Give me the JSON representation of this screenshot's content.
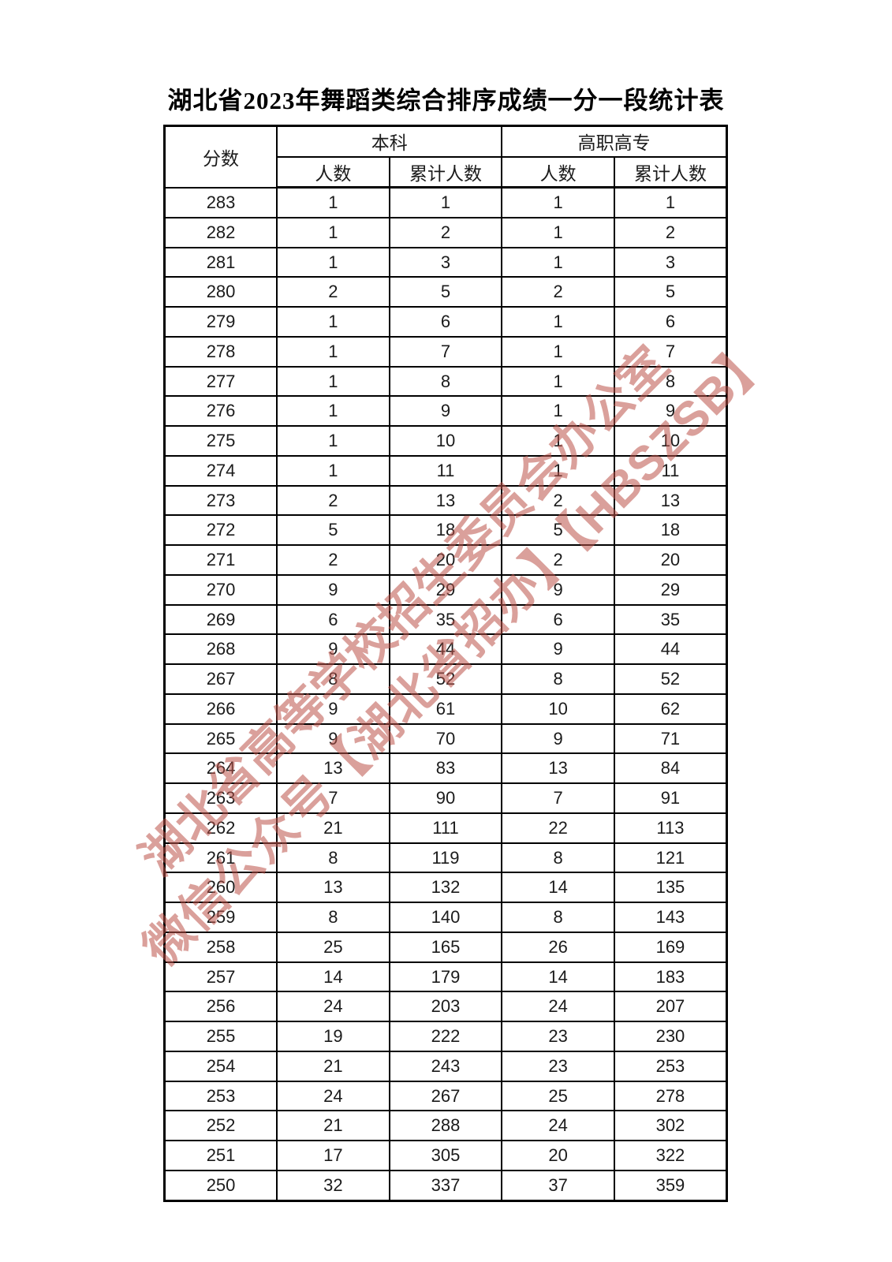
{
  "page_title": "湖北省2023年舞蹈类综合排序成绩一分一段统计表",
  "table": {
    "header": {
      "score": "分数",
      "undergraduate": "本科",
      "vocational": "高职高专",
      "count": "人数",
      "cumulative": "累计人数"
    },
    "rows": [
      {
        "score": "283",
        "bk_count": "1",
        "bk_cum": "1",
        "gz_count": "1",
        "gz_cum": "1"
      },
      {
        "score": "282",
        "bk_count": "1",
        "bk_cum": "2",
        "gz_count": "1",
        "gz_cum": "2"
      },
      {
        "score": "281",
        "bk_count": "1",
        "bk_cum": "3",
        "gz_count": "1",
        "gz_cum": "3"
      },
      {
        "score": "280",
        "bk_count": "2",
        "bk_cum": "5",
        "gz_count": "2",
        "gz_cum": "5"
      },
      {
        "score": "279",
        "bk_count": "1",
        "bk_cum": "6",
        "gz_count": "1",
        "gz_cum": "6"
      },
      {
        "score": "278",
        "bk_count": "1",
        "bk_cum": "7",
        "gz_count": "1",
        "gz_cum": "7"
      },
      {
        "score": "277",
        "bk_count": "1",
        "bk_cum": "8",
        "gz_count": "1",
        "gz_cum": "8"
      },
      {
        "score": "276",
        "bk_count": "1",
        "bk_cum": "9",
        "gz_count": "1",
        "gz_cum": "9"
      },
      {
        "score": "275",
        "bk_count": "1",
        "bk_cum": "10",
        "gz_count": "1",
        "gz_cum": "10"
      },
      {
        "score": "274",
        "bk_count": "1",
        "bk_cum": "11",
        "gz_count": "1",
        "gz_cum": "11"
      },
      {
        "score": "273",
        "bk_count": "2",
        "bk_cum": "13",
        "gz_count": "2",
        "gz_cum": "13"
      },
      {
        "score": "272",
        "bk_count": "5",
        "bk_cum": "18",
        "gz_count": "5",
        "gz_cum": "18"
      },
      {
        "score": "271",
        "bk_count": "2",
        "bk_cum": "20",
        "gz_count": "2",
        "gz_cum": "20"
      },
      {
        "score": "270",
        "bk_count": "9",
        "bk_cum": "29",
        "gz_count": "9",
        "gz_cum": "29"
      },
      {
        "score": "269",
        "bk_count": "6",
        "bk_cum": "35",
        "gz_count": "6",
        "gz_cum": "35"
      },
      {
        "score": "268",
        "bk_count": "9",
        "bk_cum": "44",
        "gz_count": "9",
        "gz_cum": "44"
      },
      {
        "score": "267",
        "bk_count": "8",
        "bk_cum": "52",
        "gz_count": "8",
        "gz_cum": "52"
      },
      {
        "score": "266",
        "bk_count": "9",
        "bk_cum": "61",
        "gz_count": "10",
        "gz_cum": "62"
      },
      {
        "score": "265",
        "bk_count": "9",
        "bk_cum": "70",
        "gz_count": "9",
        "gz_cum": "71"
      },
      {
        "score": "264",
        "bk_count": "13",
        "bk_cum": "83",
        "gz_count": "13",
        "gz_cum": "84"
      },
      {
        "score": "263",
        "bk_count": "7",
        "bk_cum": "90",
        "gz_count": "7",
        "gz_cum": "91"
      },
      {
        "score": "262",
        "bk_count": "21",
        "bk_cum": "111",
        "gz_count": "22",
        "gz_cum": "113"
      },
      {
        "score": "261",
        "bk_count": "8",
        "bk_cum": "119",
        "gz_count": "8",
        "gz_cum": "121"
      },
      {
        "score": "260",
        "bk_count": "13",
        "bk_cum": "132",
        "gz_count": "14",
        "gz_cum": "135"
      },
      {
        "score": "259",
        "bk_count": "8",
        "bk_cum": "140",
        "gz_count": "8",
        "gz_cum": "143"
      },
      {
        "score": "258",
        "bk_count": "25",
        "bk_cum": "165",
        "gz_count": "26",
        "gz_cum": "169"
      },
      {
        "score": "257",
        "bk_count": "14",
        "bk_cum": "179",
        "gz_count": "14",
        "gz_cum": "183"
      },
      {
        "score": "256",
        "bk_count": "24",
        "bk_cum": "203",
        "gz_count": "24",
        "gz_cum": "207"
      },
      {
        "score": "255",
        "bk_count": "19",
        "bk_cum": "222",
        "gz_count": "23",
        "gz_cum": "230"
      },
      {
        "score": "254",
        "bk_count": "21",
        "bk_cum": "243",
        "gz_count": "23",
        "gz_cum": "253"
      },
      {
        "score": "253",
        "bk_count": "24",
        "bk_cum": "267",
        "gz_count": "25",
        "gz_cum": "278"
      },
      {
        "score": "252",
        "bk_count": "21",
        "bk_cum": "288",
        "gz_count": "24",
        "gz_cum": "302"
      },
      {
        "score": "251",
        "bk_count": "17",
        "bk_cum": "305",
        "gz_count": "20",
        "gz_cum": "322"
      },
      {
        "score": "250",
        "bk_count": "32",
        "bk_cum": "337",
        "gz_count": "37",
        "gz_cum": "359"
      }
    ]
  },
  "watermark": {
    "line1": "湖北省高等学校招生委员会办公室",
    "line2": "微信公众号【湖北省招办】【HBSZSB】",
    "color": "rgba(187,82,72,0.55)"
  }
}
